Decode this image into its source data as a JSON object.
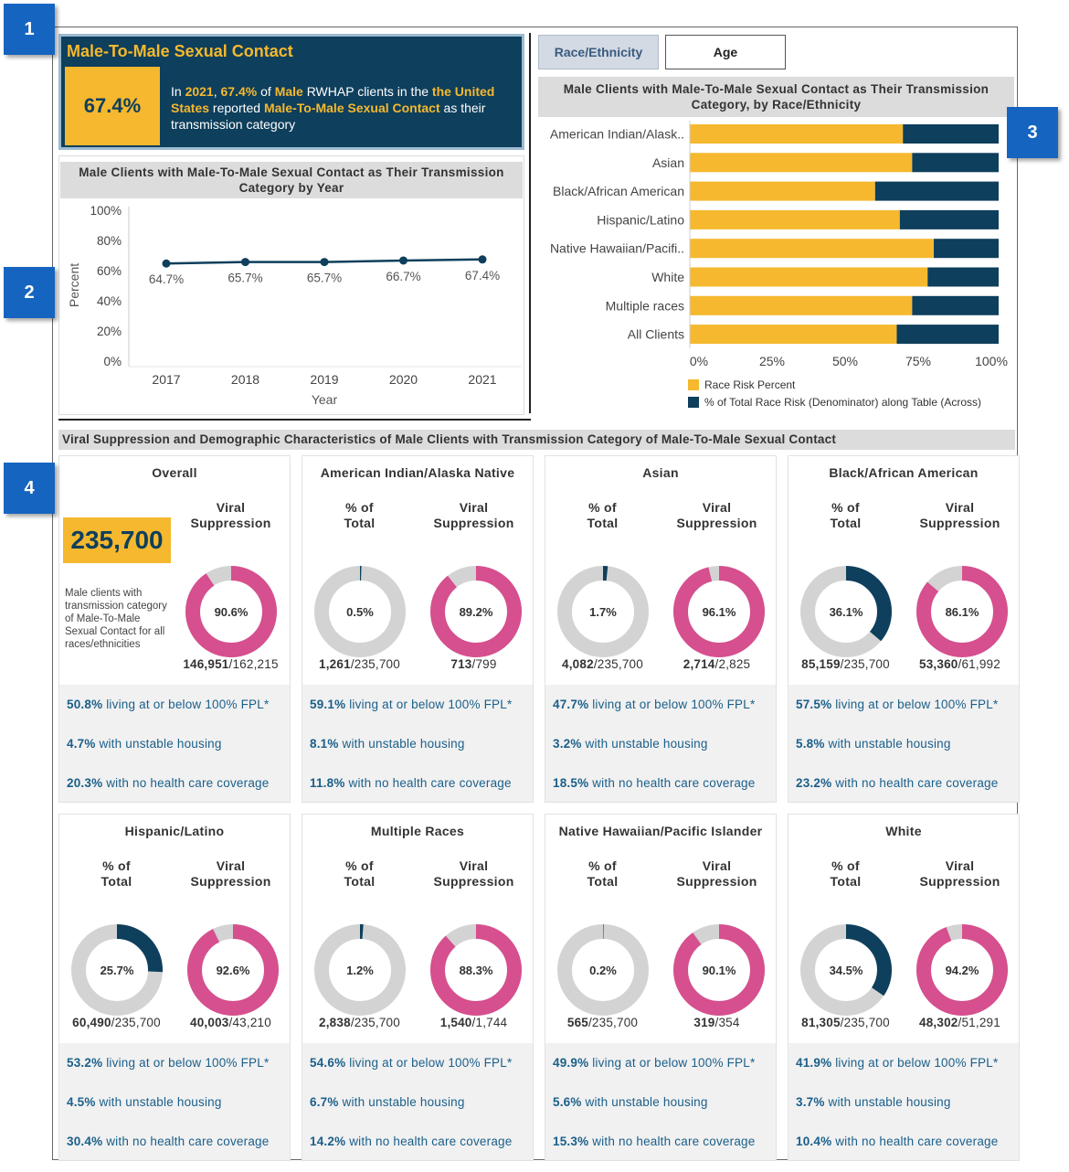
{
  "callouts": [
    "1",
    "2",
    "3",
    "4"
  ],
  "kpi": {
    "title": "Male-To-Male Sexual Contact",
    "value": "67.4%",
    "text": {
      "p1": "In ",
      "year": "2021",
      "p2": ", ",
      "pct": "67.4%",
      "p3": " of ",
      "sex": "Male",
      "p4": " RWHAP clients in the ",
      "the": "the",
      "place": "United States",
      "p5": " reported ",
      "cat": "Male-To-Male Sexual Contact",
      "p6": " as their transmission category"
    }
  },
  "colors": {
    "navy": "#0e3f5c",
    "gold": "#f5b82e",
    "pink": "#d64f8e",
    "gray": "#d3d3d3",
    "stat_text": "#1a5f8a"
  },
  "line_chart": {
    "title_line1": "Male Clients with Male-To-Male Sexual Contact as Their Transmission",
    "title_line2": "Category by Year",
    "ylabel": "Percent",
    "xlabel": "Year",
    "y_ticks": [
      "100%",
      "80%",
      "60%",
      "40%",
      "20%",
      "0%"
    ]
  },
  "tabs": {
    "race": "Race/Ethnicity",
    "age": "Age"
  },
  "bar_chart": {
    "title_line1": "Male Clients with Male-To-Male Sexual Contact as Their Transmission",
    "title_line2": "Category, by Race/Ethnicity",
    "x_ticks": [
      "0%",
      "25%",
      "50%",
      "75%",
      "100%"
    ],
    "legend": [
      "Race Risk Percent",
      "% of Total Race Risk (Denominator) along Table (Across)"
    ]
  },
  "chart_data": [
    {
      "type": "line",
      "title": "Male Clients with Male-To-Male Sexual Contact as Their Transmission Category by Year",
      "xlabel": "Year",
      "ylabel": "Percent",
      "x": [
        "2017",
        "2018",
        "2019",
        "2020",
        "2021"
      ],
      "values": [
        64.7,
        65.7,
        65.7,
        66.7,
        67.4
      ],
      "labels": [
        "64.7%",
        "65.7%",
        "65.7%",
        "66.7%",
        "67.4%"
      ],
      "ylim": [
        0,
        100
      ],
      "grid": false
    },
    {
      "type": "bar",
      "orientation": "horizontal-stacked-100",
      "title": "Male Clients with Male-To-Male Sexual Contact as Their Transmission Category, by Race/Ethnicity",
      "categories": [
        "American Indian/Alask..",
        "Asian",
        "Black/African American",
        "Hispanic/Latino",
        "Native Hawaiian/Pacifi..",
        "White",
        "Multiple races",
        "All Clients"
      ],
      "series": [
        {
          "name": "Race Risk Percent",
          "values": [
            69,
            72,
            60,
            68,
            79,
            77,
            72,
            67
          ]
        },
        {
          "name": "% of Total Race Risk (Denominator) along Table (Across)",
          "values": [
            31,
            28,
            40,
            32,
            21,
            23,
            28,
            33
          ]
        }
      ],
      "xlim": [
        0,
        100
      ],
      "legend": "bottom"
    }
  ],
  "section_title": "Viral Suppression and Demographic Characteristics of Male Clients with Transmission Category of Male-To-Male Sexual Contact",
  "labels": {
    "pct_total": [
      "% of",
      "Total"
    ],
    "viral": [
      "Viral",
      "Suppression"
    ]
  },
  "overall": {
    "title": "Overall",
    "total": "235,700",
    "desc": "Male clients with transmission category of Male-To-Male Sexual Contact for all races/ethnicities",
    "vs_pct": 90.6,
    "vs_label": "90.6%",
    "vs_num": "146,951",
    "vs_den": "/162,215",
    "fpl": "50.8%",
    "fpl_text": " living at or below 100% FPL*",
    "housing": "4.7%",
    "housing_text": " with unstable housing",
    "coverage": "20.3%",
    "coverage_text": " with no health care coverage"
  },
  "groups": [
    {
      "title": "American Indian/Alaska Native",
      "pt_pct": 0.5,
      "pt_label": "0.5%",
      "pt_num": "1,261",
      "pt_den": "/235,700",
      "vs_pct": 89.2,
      "vs_label": "89.2%",
      "vs_num": "713",
      "vs_den": "/799",
      "fpl": "59.1%",
      "fpl_text": " living at or below 100% FPL*",
      "housing": "8.1%",
      "housing_text": " with unstable housing",
      "coverage": "11.8%",
      "coverage_text": " with no health care coverage"
    },
    {
      "title": "Asian",
      "pt_pct": 1.7,
      "pt_label": "1.7%",
      "pt_num": "4,082",
      "pt_den": "/235,700",
      "vs_pct": 96.1,
      "vs_label": "96.1%",
      "vs_num": "2,714",
      "vs_den": "/2,825",
      "fpl": "47.7%",
      "fpl_text": " living at or below 100% FPL*",
      "housing": "3.2%",
      "housing_text": " with unstable housing",
      "coverage": "18.5%",
      "coverage_text": " with no health care coverage"
    },
    {
      "title": "Black/African American",
      "pt_pct": 36.1,
      "pt_label": "36.1%",
      "pt_num": "85,159",
      "pt_den": "/235,700",
      "vs_pct": 86.1,
      "vs_label": "86.1%",
      "vs_num": "53,360",
      "vs_den": "/61,992",
      "fpl": "57.5%",
      "fpl_text": " living at or below 100% FPL*",
      "housing": "5.8%",
      "housing_text": " with unstable housing",
      "coverage": "23.2%",
      "coverage_text": " with no health care coverage"
    },
    {
      "title": "Hispanic/Latino",
      "pt_pct": 25.7,
      "pt_label": "25.7%",
      "pt_num": "60,490",
      "pt_den": "/235,700",
      "vs_pct": 92.6,
      "vs_label": "92.6%",
      "vs_num": "40,003",
      "vs_den": "/43,210",
      "fpl": "53.2%",
      "fpl_text": " living at or below 100% FPL*",
      "housing": "4.5%",
      "housing_text": " with unstable housing",
      "coverage": "30.4%",
      "coverage_text": " with no health care coverage"
    },
    {
      "title": "Multiple Races",
      "pt_pct": 1.2,
      "pt_label": "1.2%",
      "pt_num": "2,838",
      "pt_den": "/235,700",
      "vs_pct": 88.3,
      "vs_label": "88.3%",
      "vs_num": "1,540",
      "vs_den": "/1,744",
      "fpl": "54.6%",
      "fpl_text": " living at or below 100% FPL*",
      "housing": "6.7%",
      "housing_text": " with unstable housing",
      "coverage": "14.2%",
      "coverage_text": " with no health care coverage"
    },
    {
      "title": "Native Hawaiian/Pacific Islander",
      "pt_pct": 0.2,
      "pt_label": "0.2%",
      "pt_num": "565",
      "pt_den": "/235,700",
      "vs_pct": 90.1,
      "vs_label": "90.1%",
      "vs_num": "319",
      "vs_den": "/354",
      "fpl": "49.9%",
      "fpl_text": " living at or below 100% FPL*",
      "housing": "5.6%",
      "housing_text": " with unstable housing",
      "coverage": "15.3%",
      "coverage_text": " with no health care coverage"
    },
    {
      "title": "White",
      "pt_pct": 34.5,
      "pt_label": "34.5%",
      "pt_num": "81,305",
      "pt_den": "/235,700",
      "vs_pct": 94.2,
      "vs_label": "94.2%",
      "vs_num": "48,302",
      "vs_den": "/51,291",
      "fpl": "41.9%",
      "fpl_text": " living at or below 100% FPL*",
      "housing": "3.7%",
      "housing_text": " with unstable housing",
      "coverage": "10.4%",
      "coverage_text": " with no health care coverage"
    }
  ]
}
